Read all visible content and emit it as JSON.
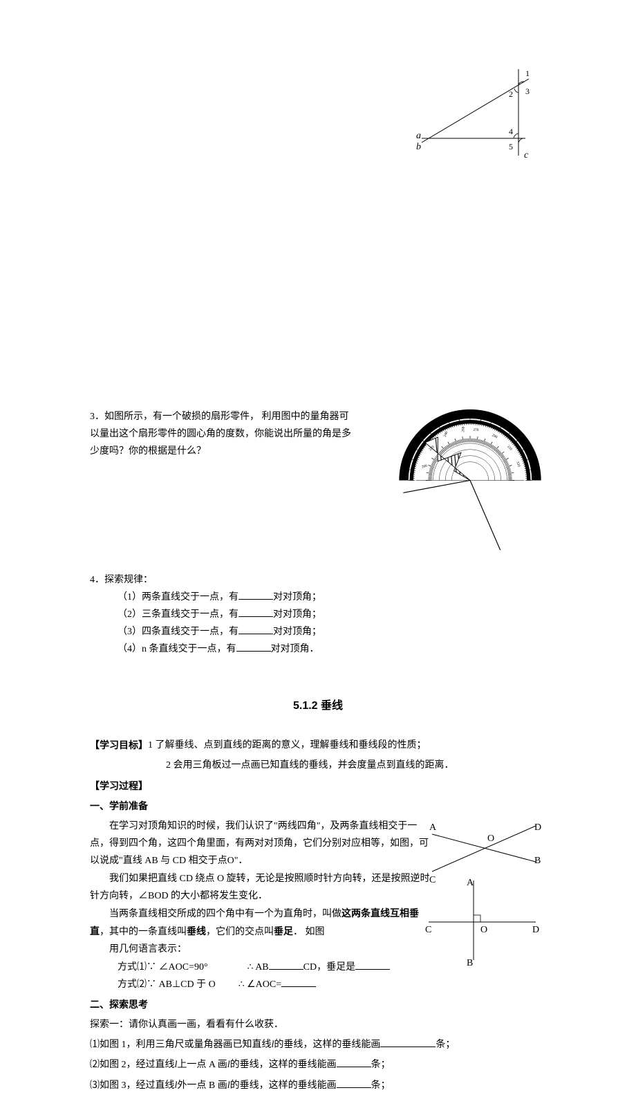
{
  "figure_angle": {
    "labels": {
      "a": "a",
      "b": "b",
      "c": "c",
      "n1": "1",
      "n2": "2",
      "n3": "3",
      "n4": "4",
      "n5": "5"
    },
    "line_color": "#000000",
    "stroke_width": 1.2
  },
  "q3": {
    "label": "3．",
    "text": "如图所示，有一个破损的扇形零件， 利用图中的量角器可以量出这个扇形零件的圆心角的度数，你能说出所量的角是多少度吗？你的根据是什么？"
  },
  "protractor": {
    "outer_color": "#000000",
    "hatch_color": "#000000",
    "scale_labels": [
      "190",
      "200",
      "210",
      "220",
      "230",
      "240",
      "250",
      "260",
      "270",
      "280",
      "290",
      "300",
      "310",
      "320",
      "330",
      "340",
      "350",
      "10",
      "20",
      "30",
      "40",
      "50",
      "60",
      "70",
      "80",
      "90",
      "100",
      "110",
      "120",
      "130",
      "140",
      "150",
      "160",
      "170"
    ]
  },
  "q4": {
    "label": "4．探索规律：",
    "items": [
      "（1）两条直线交于一点，有",
      "（2）三条直线交于一点，有",
      "（3）四条直线交于一点，有",
      "（4）n 条直线交于一点，有"
    ],
    "suffix_kv": "对对顶角；",
    "suffix_end": "对对顶角．"
  },
  "section_title": "5.1.2 垂线",
  "goals": {
    "header": "【学习目标】",
    "g1": "1 了解垂线、点到直线的距离的意义，理解垂线和垂线段的性质；",
    "g2": "2 会用三角板过一点画已知直线的垂线，并会度量点到直线的距离．"
  },
  "process_header": "【学习过程】",
  "prep_header": "一、学前准备",
  "prep": {
    "p1": "在学习对顶角知识的时候，我们认识了\"两线四角\"，及两条直线相交于一点，得到四个角，这四个角里面，有两对对顶角，它们分别对应相等，如图，可以说成\"直线 AB 与 CD 相交于点O\"．",
    "p2": "我们如果把直线 CD 绕点 O 旋转，无论是按照顺时针方向转，还是按照逆时针方向转，∠BOD 的大小都将发生变化．",
    "p3a": "当两条直线相交所成的四个角中有一个为直角时，叫做",
    "p3b": "这两条直线互相垂直",
    "p3c": "，其中的一条直线叫",
    "p3d": "垂线",
    "p3e": "，它们的交点叫",
    "p3f": "垂足",
    "p3g": "． 如图",
    "geom_label": "用几何语言表示：",
    "f1_pre": "方式⑴∵ ∠AOC=90°",
    "f1_mid": "∴  AB",
    "f1_suf": "CD，垂足是",
    "f2_pre": "方式⑵∵  AB⊥CD 于 O",
    "f2_mid": "∴ ∠AOC="
  },
  "cross_fig": {
    "labels": {
      "A": "A",
      "B": "B",
      "C": "C",
      "D": "D",
      "O": "O"
    },
    "line_color": "#000000"
  },
  "perp_fig": {
    "labels": {
      "A": "A",
      "B": "B",
      "C": "C",
      "D": "D",
      "O": "O"
    },
    "line_color": "#000000"
  },
  "explore_header": "二、探索思考",
  "explore": {
    "intro": "探索一：请你认真画一画，看看有什么收获．",
    "e1a": "⑴如图 1，利用三角尺或量角器画已知直线",
    "e1b": "的垂线，这样的垂线能画",
    "e1c": "条；",
    "e2a": "⑵如图 2，经过直线",
    "e2b": "上一点 A 画",
    "e2c": "的垂线，这样的垂线能画",
    "e2d": "条；",
    "e3a": "⑶如图 3，经过直线",
    "e3b": "外一点 B 画",
    "e3c": "的垂线，这样的垂线能画",
    "e3d": "条；"
  },
  "italic_l": "l"
}
